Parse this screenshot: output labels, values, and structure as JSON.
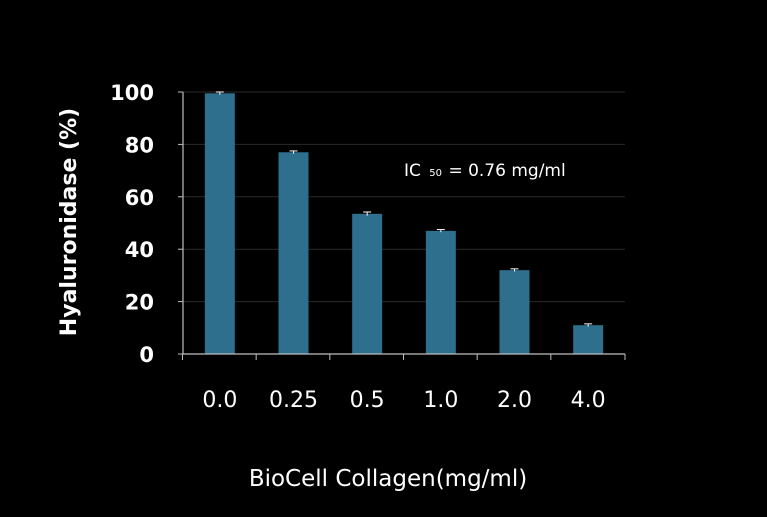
{
  "chart_data": {
    "type": "bar",
    "categories": [
      "0.0",
      "0.25",
      "0.5",
      "1.0",
      "2.0",
      "4.0"
    ],
    "series": [
      {
        "values": [
          99.5,
          77,
          53.5,
          47,
          32,
          11
        ],
        "errors": [
          0.5,
          0.5,
          0.7,
          0.5,
          0.5,
          0.5
        ],
        "color": "#2e6f8e"
      }
    ],
    "xlabel": "BioCell Collagen(mg/ml)",
    "ylabel": "Hyaluronidase (%)",
    "ylim": [
      0,
      100
    ],
    "yticks": [
      0,
      20,
      40,
      60,
      80,
      100
    ],
    "grid": true,
    "annotation": {
      "prefix": "IC",
      "subscript": "50",
      "suffix": "= 0.76 mg/ml"
    },
    "colors": {
      "background": "#000000",
      "bar": "#2e6f8e",
      "text": "#ffffff",
      "grid": "#2a2a2a",
      "axis": "#bfbfbf"
    }
  }
}
